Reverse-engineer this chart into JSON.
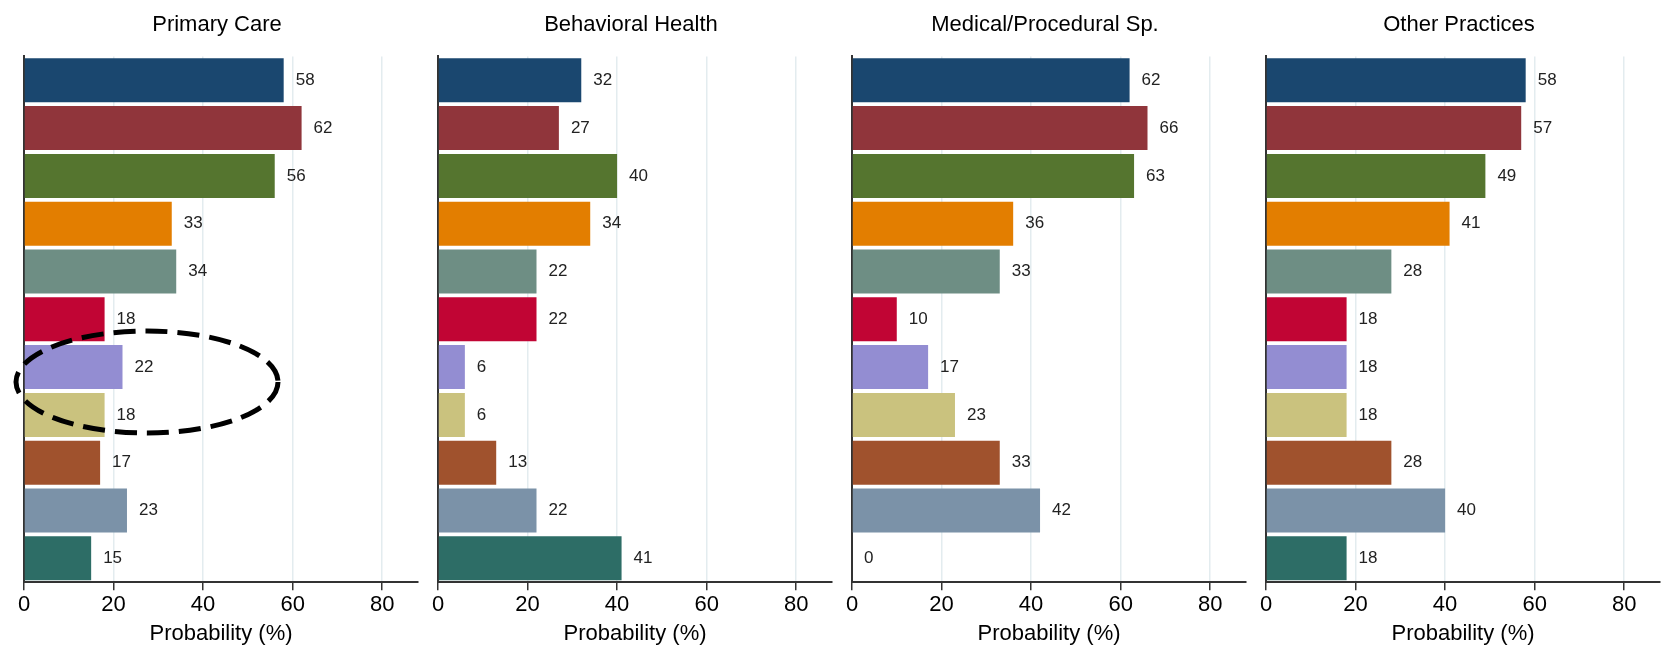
{
  "chart_data": [
    {
      "type": "bar",
      "orientation": "horizontal",
      "title": "Primary Care",
      "xlabel": "Probability (%)",
      "categories": [
        null,
        null,
        null,
        null,
        null,
        null,
        null,
        null,
        null,
        null,
        null
      ],
      "values": [
        58,
        62,
        56,
        33,
        34,
        18,
        22,
        18,
        17,
        23,
        15
      ],
      "colors": [
        "#1a476f",
        "#90353b",
        "#55752f",
        "#e37e00",
        "#6e8e84",
        "#c10534",
        "#938dd2",
        "#cac27e",
        "#a0522d",
        "#7b92a8",
        "#2d6d66"
      ],
      "xlim": [
        0,
        88
      ],
      "xticks": [
        0,
        20,
        40,
        60,
        80
      ],
      "grid": "x",
      "data_labels": true,
      "legend": false
    },
    {
      "type": "bar",
      "orientation": "horizontal",
      "title": "Behavioral Health",
      "xlabel": "Probability (%)",
      "categories": [
        null,
        null,
        null,
        null,
        null,
        null,
        null,
        null,
        null,
        null,
        null
      ],
      "values": [
        32,
        27,
        40,
        34,
        22,
        22,
        6,
        6,
        13,
        22,
        41
      ],
      "colors": [
        "#1a476f",
        "#90353b",
        "#55752f",
        "#e37e00",
        "#6e8e84",
        "#c10534",
        "#938dd2",
        "#cac27e",
        "#a0522d",
        "#7b92a8",
        "#2d6d66"
      ],
      "xlim": [
        0,
        88
      ],
      "xticks": [
        0,
        20,
        40,
        60,
        80
      ],
      "grid": "x",
      "data_labels": true,
      "legend": false
    },
    {
      "type": "bar",
      "orientation": "horizontal",
      "title": "Medical/Procedural Sp.",
      "xlabel": "Probability (%)",
      "categories": [
        null,
        null,
        null,
        null,
        null,
        null,
        null,
        null,
        null,
        null,
        null
      ],
      "values": [
        62,
        66,
        63,
        36,
        33,
        10,
        17,
        23,
        33,
        42,
        0
      ],
      "colors": [
        "#1a476f",
        "#90353b",
        "#55752f",
        "#e37e00",
        "#6e8e84",
        "#c10534",
        "#938dd2",
        "#cac27e",
        "#a0522d",
        "#7b92a8",
        "#2d6d66"
      ],
      "xlim": [
        0,
        88
      ],
      "xticks": [
        0,
        20,
        40,
        60,
        80
      ],
      "grid": "x",
      "data_labels": true,
      "legend": false
    },
    {
      "type": "bar",
      "orientation": "horizontal",
      "title": "Other Practices",
      "xlabel": "Probability (%)",
      "categories": [
        null,
        null,
        null,
        null,
        null,
        null,
        null,
        null,
        null,
        null,
        null
      ],
      "values": [
        58,
        57,
        49,
        41,
        28,
        18,
        18,
        18,
        28,
        40,
        18
      ],
      "colors": [
        "#1a476f",
        "#90353b",
        "#55752f",
        "#e37e00",
        "#6e8e84",
        "#c10534",
        "#938dd2",
        "#cac27e",
        "#a0522d",
        "#7b92a8",
        "#2d6d66"
      ],
      "xlim": [
        0,
        88
      ],
      "xticks": [
        0,
        20,
        40,
        60,
        80
      ],
      "grid": "x",
      "data_labels": true,
      "legend": false
    }
  ]
}
